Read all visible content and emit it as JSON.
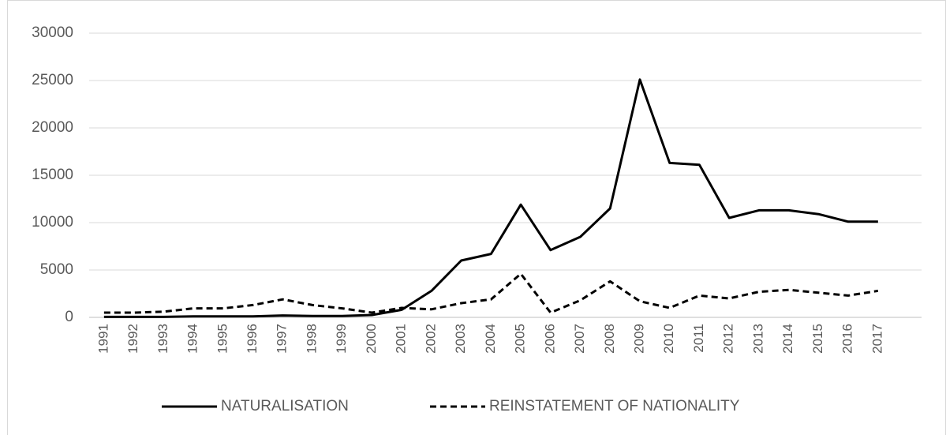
{
  "chart_data": {
    "type": "line",
    "categories": [
      "1991",
      "1992",
      "1993",
      "1994",
      "1995",
      "1996",
      "1997",
      "1998",
      "1999",
      "2000",
      "2001",
      "2002",
      "2003",
      "2004",
      "2005",
      "2006",
      "2007",
      "2008",
      "2009",
      "2010",
      "2011",
      "2012",
      "2013",
      "2014",
      "2015",
      "2016",
      "2017"
    ],
    "series": [
      {
        "name": "NATURALISATION",
        "color": "#000000",
        "dash": "solid",
        "values": [
          50,
          50,
          50,
          100,
          100,
          100,
          200,
          150,
          150,
          250,
          800,
          2800,
          6000,
          6700,
          11900,
          7100,
          8500,
          11500,
          25100,
          16300,
          16100,
          10500,
          11300,
          11300,
          10900,
          10100,
          10100
        ]
      },
      {
        "name": "REINSTATEMENT OF NATIONALITY",
        "color": "#000000",
        "dash": "dashed",
        "values": [
          500,
          500,
          600,
          950,
          950,
          1300,
          1900,
          1300,
          950,
          500,
          1000,
          850,
          1500,
          1900,
          4600,
          500,
          1800,
          3800,
          1700,
          1000,
          2300,
          2000,
          2700,
          2900,
          2600,
          2300,
          2800
        ]
      }
    ],
    "ylim": [
      0,
      30000
    ],
    "yticks": [
      0,
      5000,
      10000,
      15000,
      20000,
      25000,
      30000
    ],
    "grid": true,
    "legend": "bottom"
  }
}
